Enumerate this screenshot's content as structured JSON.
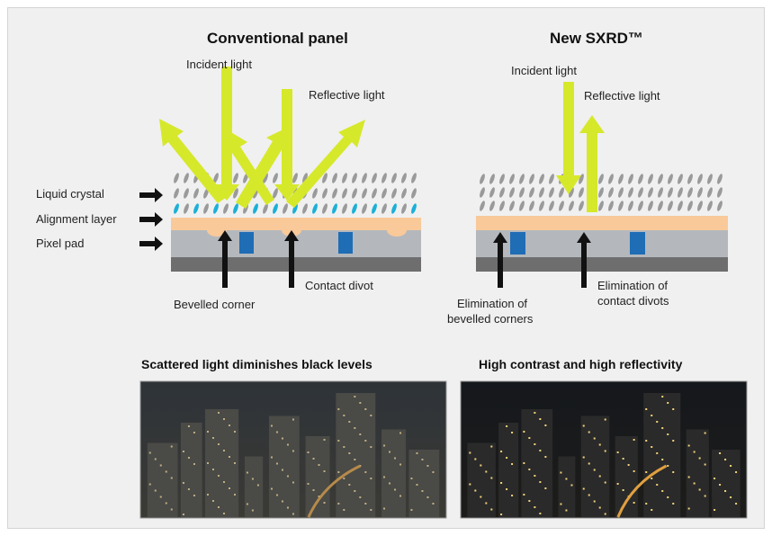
{
  "left": {
    "title": "Conventional panel",
    "incident": "Incident light",
    "reflective": "Reflective light",
    "bevelled": "Bevelled corner",
    "contact": "Contact divot",
    "caption": "Scattered light diminishes black levels"
  },
  "right": {
    "title": "New SXRD™",
    "incident": "Incident light",
    "reflective": "Reflective light",
    "elim_bevel_1": "Elimination of",
    "elim_bevel_2": "bevelled corners",
    "elim_contact_1": "Elimination of",
    "elim_contact_2": "contact divots",
    "caption": "High contrast and high reflectivity"
  },
  "layers": {
    "liquid_crystal": "Liquid crystal",
    "alignment": "Alignment layer",
    "pixel_pad": "Pixel pad"
  },
  "colors": {
    "arrow_yellow": "#d6e82a",
    "alignment_layer": "#f9c99a",
    "pixel_pad": "#b4b8bc",
    "substrate": "#6e6e6e",
    "electrode_blue": "#1f6db5",
    "crystal_cyan": "#1ab0d8",
    "crystal_grey": "#9a9a9a"
  }
}
